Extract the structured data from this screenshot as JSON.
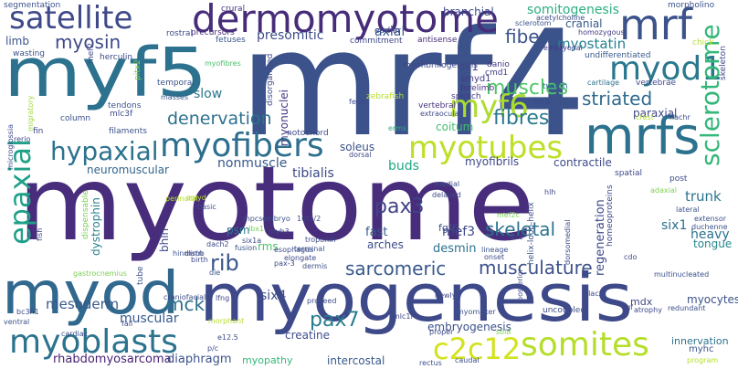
{
  "words": [
    {
      "text": "myotome",
      "color": "#472d7b"
    },
    {
      "text": "mrf4",
      "color": "#3b528b"
    },
    {
      "text": "myf5",
      "color": "#2c728e"
    },
    {
      "text": "myogenesis",
      "color": "#3e4989"
    },
    {
      "text": "myod",
      "color": "#31688e"
    },
    {
      "text": "dermomyotome",
      "color": "#472c7a"
    },
    {
      "text": "satellite",
      "color": "#3e4a89"
    },
    {
      "text": "mrfs",
      "color": "#2c728e"
    },
    {
      "text": "mrf",
      "color": "#3b528b"
    },
    {
      "text": "myod1",
      "color": "#2a788e"
    },
    {
      "text": "somites",
      "color": "#b5de2b"
    },
    {
      "text": "c2c12",
      "color": "#d2e21b"
    },
    {
      "text": "myoblasts",
      "color": "#2c738e"
    },
    {
      "text": "myofibers",
      "color": "#2e6f8e"
    },
    {
      "text": "myotubes",
      "color": "#bddf26"
    },
    {
      "text": "myf6",
      "color": "#addc30"
    },
    {
      "text": "epaxial",
      "color": "#1fa188"
    },
    {
      "text": "hypaxial",
      "color": "#2c728e"
    },
    {
      "text": "sclerotome",
      "color": "#35b779"
    },
    {
      "text": "muscles",
      "color": "#52c569"
    },
    {
      "text": "fibres",
      "color": "#2a788e"
    },
    {
      "text": "fibers",
      "color": "#3b528b"
    },
    {
      "text": "striated",
      "color": "#306a8e"
    },
    {
      "text": "myostatin",
      "color": "#27808e"
    },
    {
      "text": "somitogenesis",
      "color": "#2ab07f"
    },
    {
      "text": "denervation",
      "color": "#2c728e"
    },
    {
      "text": "myosin",
      "color": "#3e4989"
    },
    {
      "text": "presomitic",
      "color": "#3e4c8a"
    },
    {
      "text": "axial",
      "color": "#38598c"
    },
    {
      "text": "limb",
      "color": "#3b528b"
    },
    {
      "text": "branchial",
      "color": "#3e4c8a"
    },
    {
      "text": "cranial",
      "color": "#38598c"
    },
    {
      "text": "pax3",
      "color": "#414487"
    },
    {
      "text": "rib",
      "color": "#39558c"
    },
    {
      "text": "sarcomeric",
      "color": "#38588c"
    },
    {
      "text": "musculature",
      "color": "#3b518b"
    },
    {
      "text": "skeletal",
      "color": "#2c738e"
    },
    {
      "text": "pax7",
      "color": "#287c8e"
    },
    {
      "text": "mck",
      "color": "#2d708e"
    },
    {
      "text": "mef3",
      "color": "#3f4788"
    },
    {
      "text": "desmin",
      "color": "#2c728e"
    },
    {
      "text": "six1",
      "color": "#2e6e8e"
    },
    {
      "text": "six4",
      "color": "#3d4e8a"
    },
    {
      "text": "trunk",
      "color": "#2a768e"
    },
    {
      "text": "heavy",
      "color": "#2c728e"
    },
    {
      "text": "tongue",
      "color": "#25858e"
    },
    {
      "text": "regeneration",
      "color": "#3f4889"
    },
    {
      "text": "mesoderm",
      "color": "#38598c"
    },
    {
      "text": "muscular",
      "color": "#38588c"
    },
    {
      "text": "rhabdomyosarcoma",
      "color": "#482173"
    },
    {
      "text": "diaphragm",
      "color": "#3b528b"
    },
    {
      "text": "myopathy",
      "color": "#35b779"
    },
    {
      "text": "intercostal",
      "color": "#38598c"
    },
    {
      "text": "embryogenesis",
      "color": "#3b528b"
    },
    {
      "text": "myocytes",
      "color": "#3b528b"
    },
    {
      "text": "innervation",
      "color": "#2c728e"
    },
    {
      "text": "mdx",
      "color": "#3f4788"
    },
    {
      "text": "tibialis",
      "color": "#3e4989"
    },
    {
      "text": "soleus",
      "color": "#3b528b"
    },
    {
      "text": "buds",
      "color": "#22a785"
    },
    {
      "text": "contractile",
      "color": "#3e4c8a"
    },
    {
      "text": "paraxial",
      "color": "#3f4788"
    },
    {
      "text": "coitum",
      "color": "#44bf70"
    },
    {
      "text": "myofibrils",
      "color": "#3e4989"
    },
    {
      "text": "nonmuscle",
      "color": "#38598c"
    },
    {
      "text": "neuromuscular",
      "color": "#32658e"
    },
    {
      "text": "myonuclei",
      "color": "#443983"
    },
    {
      "text": "slow",
      "color": "#2a788e"
    },
    {
      "text": "fast",
      "color": "#38598c"
    },
    {
      "text": "bhlh",
      "color": "#3e4989"
    },
    {
      "text": "psm",
      "color": "#297a8e"
    },
    {
      "text": "rms",
      "color": "#4ac16d"
    },
    {
      "text": "arches",
      "color": "#3e4c8a"
    },
    {
      "text": "fgf6",
      "color": "#3d4d8a"
    },
    {
      "text": "dystrophin",
      "color": "#27808e"
    },
    {
      "text": "creatine",
      "color": "#3e4c8a"
    },
    {
      "text": "dll1",
      "color": "#3e4989"
    },
    {
      "text": "smyd1",
      "color": "#433d84"
    },
    {
      "text": "forelimb",
      "color": "#46337f"
    },
    {
      "text": "splotch",
      "color": "#443a83"
    },
    {
      "text": "vertebral",
      "color": "#46327e"
    },
    {
      "text": "myofibrillogenesis",
      "color": "#3e4989"
    },
    {
      "text": "danio",
      "color": "#443983"
    },
    {
      "text": "cmd1",
      "color": "#433e85"
    },
    {
      "text": "vertebrae",
      "color": "#3e4c8a"
    },
    {
      "text": "cartilage",
      "color": "#2c728e"
    },
    {
      "text": "twitch",
      "color": "#2a788e"
    },
    {
      "text": "homozygous",
      "color": "#433d84"
    },
    {
      "text": "undifferentiated",
      "color": "#38598c"
    },
    {
      "text": "acetylcholine",
      "color": "#3e4a89"
    },
    {
      "text": "embryonal",
      "color": "#443983"
    },
    {
      "text": "sclerotom",
      "color": "#3b528b"
    },
    {
      "text": "antisense",
      "color": "#472c7a"
    },
    {
      "text": "commitment",
      "color": "#3f4788"
    },
    {
      "text": "earlier",
      "color": "#3e4989"
    },
    {
      "text": "fetuses",
      "color": "#38598c"
    },
    {
      "text": "precursors",
      "color": "#472d7b"
    },
    {
      "text": "rostral",
      "color": "#3e4c8a"
    },
    {
      "text": "crural",
      "color": "#46337f"
    },
    {
      "text": "segmentation",
      "color": "#3b528b"
    },
    {
      "text": "morpholino",
      "color": "#3b528b"
    },
    {
      "text": "chick",
      "color": "#b5de2b"
    },
    {
      "text": "skeleton",
      "color": "#3e4989"
    },
    {
      "text": "wasting",
      "color": "#3b528b"
    },
    {
      "text": "herculin",
      "color": "#3e4989"
    },
    {
      "text": "mef2",
      "color": "#3e4989"
    },
    {
      "text": "temporal",
      "color": "#3b528b"
    },
    {
      "text": "myofibres",
      "color": "#4ac16d"
    },
    {
      "text": "masses",
      "color": "#38598c"
    },
    {
      "text": "tendons",
      "color": "#3b528b"
    },
    {
      "text": "mlc3f",
      "color": "#3e4c8a"
    },
    {
      "text": "pitx2",
      "color": "#7ad151"
    },
    {
      "text": "column",
      "color": "#3b528b"
    },
    {
      "text": "filaments",
      "color": "#3b528b"
    },
    {
      "text": "migratory",
      "color": "#9fda3a"
    },
    {
      "text": "fin",
      "color": "#3e4989"
    },
    {
      "text": "rerio",
      "color": "#3e4989"
    },
    {
      "text": "disorganized",
      "color": "#3e4c8a"
    },
    {
      "text": "notochord",
      "color": "#3e4c8a"
    },
    {
      "text": "fetal",
      "color": "#3e4989"
    },
    {
      "text": "erms",
      "color": "#2ab07f"
    },
    {
      "text": "dorsal",
      "color": "#3e4989"
    },
    {
      "text": "zebrafish",
      "color": "#b5de2b"
    },
    {
      "text": "extraocular",
      "color": "#3e4c8a"
    },
    {
      "text": "fgf-6",
      "color": "#3e4989"
    },
    {
      "text": "crest",
      "color": "#b5de2b"
    },
    {
      "text": "hachr",
      "color": "#3e4c8a"
    },
    {
      "text": "spatial",
      "color": "#3e4989"
    },
    {
      "text": "post",
      "color": "#3e4c8a"
    },
    {
      "text": "adaxial",
      "color": "#7ad151"
    },
    {
      "text": "lateral",
      "color": "#3b528b"
    },
    {
      "text": "extensor",
      "color": "#3b528b"
    },
    {
      "text": "duchenne",
      "color": "#3b528b"
    },
    {
      "text": "hlh",
      "color": "#3e4989"
    },
    {
      "text": "delayed",
      "color": "#3e4989"
    },
    {
      "text": "medial",
      "color": "#3b528b"
    },
    {
      "text": "mef2c",
      "color": "#7ad151"
    },
    {
      "text": "helix-loop-helix",
      "color": "#3b528b"
    },
    {
      "text": "dorsomedial",
      "color": "#3e4989"
    },
    {
      "text": "homeoproteins",
      "color": "#3e4989"
    },
    {
      "text": "lacz",
      "color": "#3e4989"
    },
    {
      "text": "lineage",
      "color": "#3b528b"
    },
    {
      "text": "onset",
      "color": "#3e4c8a"
    },
    {
      "text": "cdo",
      "color": "#3e4989"
    },
    {
      "text": "multinucleated",
      "color": "#3b528b"
    },
    {
      "text": "nlacz",
      "color": "#3e4989"
    },
    {
      "text": "igf",
      "color": "#3e4989"
    },
    {
      "text": "atrophy",
      "color": "#3e4989"
    },
    {
      "text": "redundant",
      "color": "#3b528b"
    },
    {
      "text": "uncoupled",
      "color": "#3e4c8a"
    },
    {
      "text": "newly",
      "color": "#3e4989"
    },
    {
      "text": "posterior",
      "color": "#3e4c8a"
    },
    {
      "text": "myomaker",
      "color": "#3b528b"
    },
    {
      "text": "mlc1f",
      "color": "#3e4989"
    },
    {
      "text": "proper",
      "color": "#3e4989"
    },
    {
      "text": "sol8",
      "color": "#7ad151"
    },
    {
      "text": "caudal",
      "color": "#3e4c8a"
    },
    {
      "text": "rectus",
      "color": "#3b528b"
    },
    {
      "text": "myhc",
      "color": "#3b528b"
    },
    {
      "text": "program",
      "color": "#b5de2b"
    },
    {
      "text": "esophagus",
      "color": "#3e4c8a"
    },
    {
      "text": "elongate",
      "color": "#3e4989"
    },
    {
      "text": "dermis",
      "color": "#3b528b"
    },
    {
      "text": "troponin",
      "color": "#3e4c8a"
    },
    {
      "text": "terminal",
      "color": "#3b528b"
    },
    {
      "text": "myh3",
      "color": "#3e4989"
    },
    {
      "text": "10t1/2",
      "color": "#3e4989"
    },
    {
      "text": "embryo",
      "color": "#3b528b"
    },
    {
      "text": "mpcs",
      "color": "#3e4c8a"
    },
    {
      "text": "six1a",
      "color": "#3e4989"
    },
    {
      "text": "lbx1",
      "color": "#7ad151"
    },
    {
      "text": "fusion",
      "color": "#3b528b"
    },
    {
      "text": "pax-3",
      "color": "#3e4989"
    },
    {
      "text": "proceed",
      "color": "#3e4c8a"
    },
    {
      "text": "dach2",
      "color": "#3e4989"
    },
    {
      "text": "mstn",
      "color": "#3e4989"
    },
    {
      "text": "birth",
      "color": "#3e4c8a"
    },
    {
      "text": "die",
      "color": "#3b528b"
    },
    {
      "text": "hindlimb",
      "color": "#3b528b"
    },
    {
      "text": "lfng",
      "color": "#3e4989"
    },
    {
      "text": "craniofacial",
      "color": "#3e4c8a"
    },
    {
      "text": "tube",
      "color": "#3b528b"
    },
    {
      "text": "gastrocnemius",
      "color": "#7ad151"
    },
    {
      "text": "morphant",
      "color": "#b5de2b"
    },
    {
      "text": "dispensable",
      "color": "#7ad151"
    },
    {
      "text": "smyd",
      "color": "#b5de2b"
    },
    {
      "text": "basic",
      "color": "#3e4c8a"
    },
    {
      "text": "perinatal",
      "color": "#b5de2b"
    },
    {
      "text": "bc3h1",
      "color": "#3e4989"
    },
    {
      "text": "fail",
      "color": "#3e4989"
    },
    {
      "text": "cardiac",
      "color": "#3b528b"
    },
    {
      "text": "ventral",
      "color": "#3b528b"
    },
    {
      "text": "fish",
      "color": "#3e4989"
    },
    {
      "text": "microglossia",
      "color": "#3e4989"
    },
    {
      "text": "p/c",
      "color": "#3e4c8a"
    },
    {
      "text": "e12.5",
      "color": "#3e4c8a"
    },
    {
      "text": "dystrophy",
      "color": "#3b528b"
    }
  ]
}
